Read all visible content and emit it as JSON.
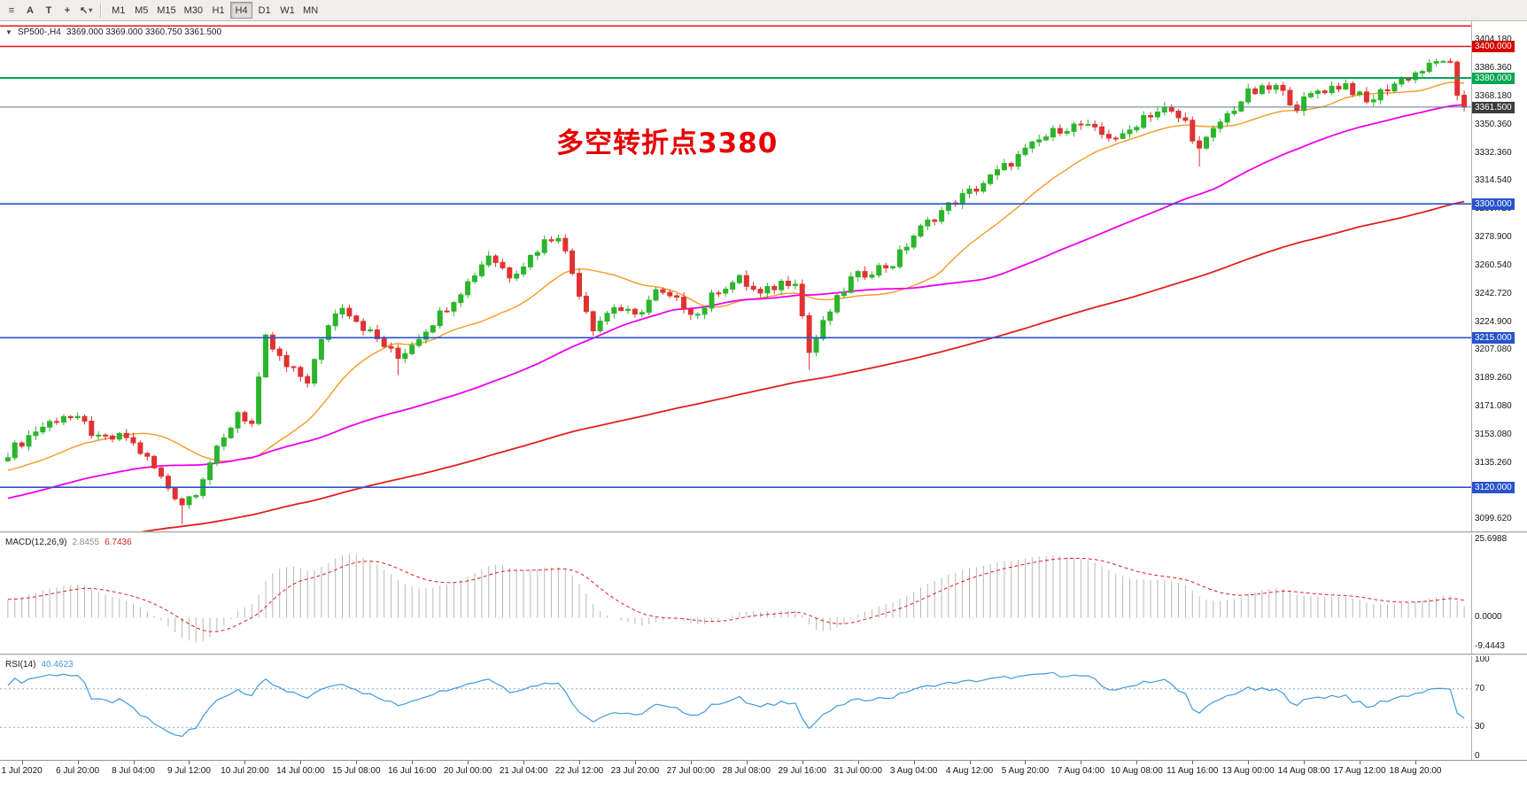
{
  "toolbar": {
    "icons": [
      {
        "name": "chart-list-icon",
        "glyph": "≡"
      },
      {
        "name": "text-tool-icon",
        "glyph": "A"
      },
      {
        "name": "template-icon",
        "glyph": "T"
      },
      {
        "name": "crosshair-icon",
        "glyph": "+"
      },
      {
        "name": "cursor-tool-icon",
        "glyph": "↖"
      },
      {
        "name": "dropdown-caret-icon",
        "glyph": "▾"
      }
    ],
    "timeframes": [
      "M1",
      "M5",
      "M15",
      "M30",
      "H1",
      "H4",
      "D1",
      "W1",
      "MN"
    ],
    "active_timeframe": "H4"
  },
  "chart_header": {
    "collapse_glyph": "▼",
    "symbol_period": "SP500-,H4",
    "ohlc": "3369.000 3369.000 3360.750 3361.500"
  },
  "annotation": {
    "text": "多空转折点3380",
    "color": "#e60000"
  },
  "chart_data": {
    "type": "candlestick",
    "symbol": "SP500-",
    "timeframe": "H4",
    "bar_count": 210,
    "noise_amp": 3.2,
    "prehistory_start": 3000,
    "candle_up_color": "#2cb52c",
    "candle_down_color": "#e03232",
    "price_axis": {
      "min": 3092,
      "max": 3416,
      "ticks": [
        "3404.180",
        "3386.360",
        "3368.180",
        "3350.360",
        "3332.360",
        "3314.540",
        "3296.720",
        "3278.900",
        "3260.540",
        "3242.720",
        "3224.900",
        "3207.080",
        "3189.260",
        "3171.080",
        "3153.080",
        "3135.260",
        "3117.440",
        "3099.620"
      ]
    },
    "close_anchors": [
      [
        0,
        3142
      ],
      [
        4,
        3156
      ],
      [
        8,
        3166
      ],
      [
        11,
        3160
      ],
      [
        13,
        3150
      ],
      [
        17,
        3152
      ],
      [
        20,
        3138
      ],
      [
        23,
        3120
      ],
      [
        25,
        3110
      ],
      [
        27,
        3118
      ],
      [
        29,
        3136
      ],
      [
        31,
        3150
      ],
      [
        33,
        3168
      ],
      [
        35,
        3160
      ],
      [
        37,
        3214
      ],
      [
        40,
        3196
      ],
      [
        43,
        3188
      ],
      [
        46,
        3224
      ],
      [
        48,
        3236
      ],
      [
        51,
        3222
      ],
      [
        54,
        3210
      ],
      [
        56,
        3202
      ],
      [
        59,
        3216
      ],
      [
        62,
        3230
      ],
      [
        66,
        3250
      ],
      [
        69,
        3268
      ],
      [
        72,
        3255
      ],
      [
        74,
        3262
      ],
      [
        77,
        3276
      ],
      [
        79,
        3281
      ],
      [
        82,
        3244
      ],
      [
        84,
        3222
      ],
      [
        87,
        3235
      ],
      [
        90,
        3228
      ],
      [
        93,
        3244
      ],
      [
        96,
        3238
      ],
      [
        99,
        3230
      ],
      [
        102,
        3246
      ],
      [
        105,
        3252
      ],
      [
        108,
        3242
      ],
      [
        111,
        3250
      ],
      [
        113,
        3252
      ],
      [
        115,
        3206
      ],
      [
        118,
        3232
      ],
      [
        121,
        3252
      ],
      [
        124,
        3258
      ],
      [
        127,
        3262
      ],
      [
        130,
        3280
      ],
      [
        133,
        3292
      ],
      [
        136,
        3302
      ],
      [
        139,
        3310
      ],
      [
        142,
        3320
      ],
      [
        145,
        3330
      ],
      [
        148,
        3340
      ],
      [
        151,
        3348
      ],
      [
        154,
        3350
      ],
      [
        157,
        3344
      ],
      [
        160,
        3342
      ],
      [
        163,
        3356
      ],
      [
        166,
        3360
      ],
      [
        169,
        3352
      ],
      [
        171,
        3334
      ],
      [
        174,
        3352
      ],
      [
        178,
        3370
      ],
      [
        182,
        3374
      ],
      [
        185,
        3362
      ],
      [
        188,
        3372
      ],
      [
        192,
        3376
      ],
      [
        195,
        3364
      ],
      [
        198,
        3374
      ],
      [
        201,
        3381
      ],
      [
        204,
        3387
      ],
      [
        206,
        3392
      ],
      [
        207,
        3390
      ],
      [
        208,
        3369
      ],
      [
        209,
        3361.5
      ]
    ],
    "long_lower_wick_bars": [
      25,
      56,
      115,
      171
    ],
    "moving_averages": [
      {
        "period": 20,
        "color": "#f59a23",
        "width": 1.4
      },
      {
        "period": 60,
        "color": "#ee00ee",
        "width": 1.8
      },
      {
        "period": 150,
        "color": "#e02020",
        "width": 1.8
      }
    ],
    "hlines": [
      {
        "price": 3413,
        "color": "#e02020",
        "width": 1.6
      },
      {
        "price": 3400,
        "color": "#e02020",
        "width": 1.6,
        "label": "3400.000",
        "label_bg": "#d40000"
      },
      {
        "price": 3380,
        "color": "#00a651",
        "width": 2,
        "label": "3380.000",
        "label_bg": "#00a651"
      },
      {
        "price": 3361.5,
        "color": "#607890",
        "width": 1,
        "label": "3361.500",
        "label_bg": "#3c3c3c"
      },
      {
        "price": 3300,
        "color": "#2953cc",
        "width": 1.6,
        "label": "3300.000",
        "label_bg": "#2953cc"
      },
      {
        "price": 3215,
        "color": "#2953cc",
        "width": 1.6,
        "label": "3215.000",
        "label_bg": "#2953cc"
      },
      {
        "price": 3120,
        "color": "#2953cc",
        "width": 1.6,
        "label": "3120.000",
        "label_bg": "#2953cc"
      }
    ],
    "macd": {
      "label": "MACD(12,26,9)",
      "value_main": "2.8455",
      "value_signal": "6.7436",
      "fast": 12,
      "slow": 26,
      "signal": 9,
      "axis_max": 25.6988,
      "axis_min": -9.4443,
      "axis_labels": [
        "25.6988",
        "0.0000",
        "-9.4443"
      ],
      "hist_color": "#b8b8b8",
      "signal_color": "#e02020"
    },
    "rsi": {
      "label": "RSI(14)",
      "value": "40.4623",
      "period": 14,
      "levels": [
        70,
        30
      ],
      "axis_labels": [
        "100",
        "70",
        "30",
        "0"
      ],
      "line_color": "#3e9bdc",
      "level_color": "#8aa8c8"
    },
    "time_labels": [
      {
        "text": "1 Jul 2020",
        "bar": 2
      },
      {
        "text": "6 Jul 20:00",
        "bar": 10
      },
      {
        "text": "8 Jul 04:00",
        "bar": 18
      },
      {
        "text": "9 Jul 12:00",
        "bar": 26
      },
      {
        "text": "10 Jul 20:00",
        "bar": 34
      },
      {
        "text": "14 Jul 00:00",
        "bar": 42
      },
      {
        "text": "15 Jul 08:00",
        "bar": 50
      },
      {
        "text": "16 Jul 16:00",
        "bar": 58
      },
      {
        "text": "20 Jul 00:00",
        "bar": 66
      },
      {
        "text": "21 Jul 04:00",
        "bar": 74
      },
      {
        "text": "22 Jul 12:00",
        "bar": 82
      },
      {
        "text": "23 Jul 20:00",
        "bar": 90
      },
      {
        "text": "27 Jul 00:00",
        "bar": 98
      },
      {
        "text": "28 Jul 08:00",
        "bar": 106
      },
      {
        "text": "29 Jul 16:00",
        "bar": 114
      },
      {
        "text": "31 Jul 00:00",
        "bar": 122
      },
      {
        "text": "3 Aug 04:00",
        "bar": 130
      },
      {
        "text": "4 Aug 12:00",
        "bar": 138
      },
      {
        "text": "5 Aug 20:00",
        "bar": 146
      },
      {
        "text": "7 Aug 04:00",
        "bar": 154
      },
      {
        "text": "10 Aug 08:00",
        "bar": 162
      },
      {
        "text": "11 Aug 16:00",
        "bar": 170
      },
      {
        "text": "13 Aug 00:00",
        "bar": 178
      },
      {
        "text": "14 Aug 08:00",
        "bar": 186
      },
      {
        "text": "17 Aug 12:00",
        "bar": 194
      },
      {
        "text": "18 Aug 20:00",
        "bar": 202
      }
    ]
  }
}
